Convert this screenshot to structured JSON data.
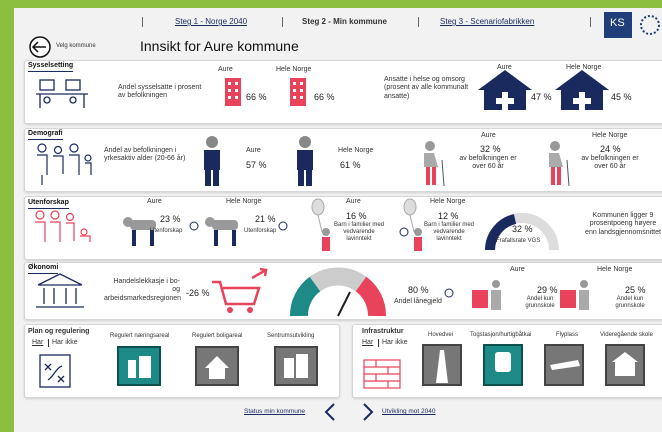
{
  "nav": {
    "steps": [
      "Steg 1 - Norge 2040",
      "Steg 2 - Min kommune",
      "Steg 3 - Scenariofabrikken"
    ],
    "logo": "KS"
  },
  "header": {
    "back": "Velg kommune",
    "title": "Innsikt for Aure kommune"
  },
  "sysselsetting": {
    "label": "Sysselsetting",
    "employment": {
      "text": "Andel sysselsatte i prosent av befolkningen",
      "local": {
        "name": "Aure",
        "value": "66 %"
      },
      "national": {
        "name": "Hele Norge",
        "value": "66 %"
      }
    },
    "health": {
      "text": "Ansatte i helse og omsorg (prosent av alle kommunalt ansatte)",
      "local": {
        "name": "Aure",
        "value": "47 %"
      },
      "national": {
        "name": "Hele Norge",
        "value": "45 %"
      }
    }
  },
  "demografi": {
    "label": "Demografi",
    "working_age": {
      "text": "Andel av befolkningen i yrkesaktiv alder (20-66 år)",
      "local": {
        "name": "Aure",
        "value": "57 %"
      },
      "national": {
        "name": "Hele Norge",
        "value": "61 %"
      }
    },
    "over60": {
      "local": {
        "name": "Aure",
        "value": "32 %",
        "text": "av befolkningen er over 60 år"
      },
      "national": {
        "name": "Hele Norge",
        "value": "24 %",
        "text": "av befolkningen er over 60 år"
      }
    }
  },
  "utenforskap": {
    "label": "Utenforskap",
    "outside": {
      "local": {
        "name": "Aure",
        "value": "23 %",
        "text": "Utenforskap"
      },
      "national": {
        "name": "Hele Norge",
        "value": "21 %",
        "text": "Utenforskap"
      }
    },
    "low_income": {
      "local": {
        "name": "Aure",
        "value": "16 %",
        "text": "Barn i familier med vedvarende lavinntekt"
      },
      "national": {
        "name": "Hele Norge",
        "value": "12 %",
        "text": "Barn i familier med vedvarende lavinntekt"
      }
    },
    "dropout": {
      "value": "32 %",
      "text": "Frafallsrate VGS",
      "note": "Kommunen ligger 9 prosentpoeng høyere enn landsgjennomsnittet"
    }
  },
  "okonomi": {
    "label": "Økonomi",
    "leakage": {
      "text": "Handelslekkasje i bo- og arbeidsmarkedsregionen",
      "value": "-26 %"
    },
    "debt": {
      "value": "80 %",
      "text": "Andel lånegjeld"
    },
    "education": {
      "local": {
        "name": "Aure",
        "value": "29 %",
        "text": "Andel kun grunnskole"
      },
      "national": {
        "name": "Hele Norge",
        "value": "25 %",
        "text": "Andel kun grunnskole"
      }
    }
  },
  "plan": {
    "label": "Plan og regulering",
    "toggle": [
      "Har",
      "Har ikke"
    ],
    "items": [
      "Regulert næringsareal",
      "Regulert boligareal",
      "Sentrumsutvikling"
    ]
  },
  "infrastruktur": {
    "label": "Infrastruktur",
    "toggle": [
      "Har",
      "Har ikke"
    ],
    "items": [
      "Hovedvei",
      "Togstasjon/hurtigbåtkai",
      "Flyplass",
      "Videregående skole"
    ]
  },
  "footer": {
    "prev": "Status min kommune",
    "next": "Utvikling mot 2040"
  }
}
